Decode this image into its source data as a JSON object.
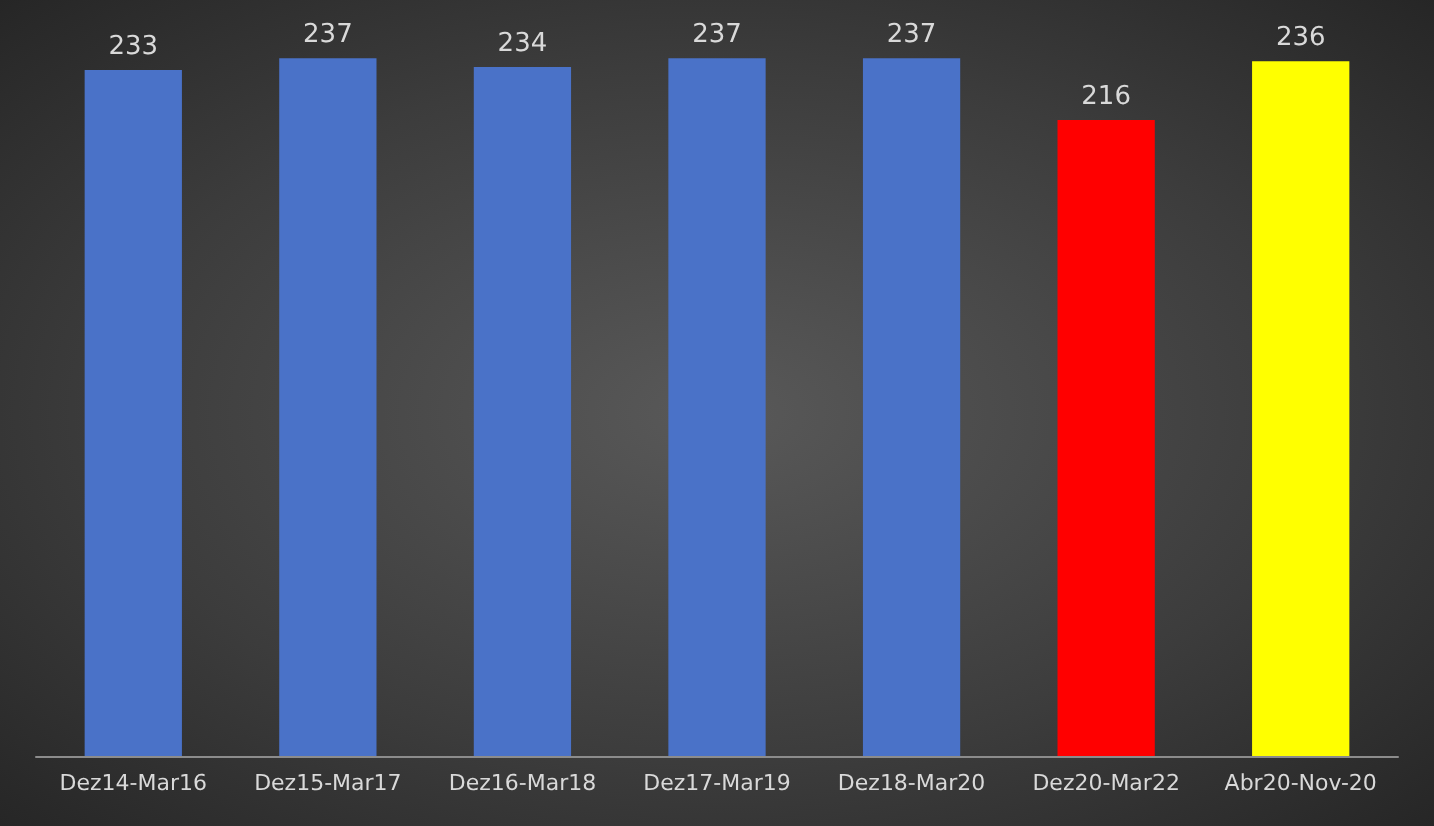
{
  "chart_data": {
    "type": "bar",
    "categories": [
      "Dez14-Mar16",
      "Dez15-Mar17",
      "Dez16-Mar18",
      "Dez17-Mar19",
      "Dez18-Mar20",
      "Dez20-Mar22",
      "Abr20-Nov-20"
    ],
    "values": [
      233,
      237,
      234,
      237,
      237,
      216,
      236
    ],
    "colors": [
      "#4a72c8",
      "#4a72c8",
      "#4a72c8",
      "#4a72c8",
      "#4a72c8",
      "#ff0000",
      "#ffff00"
    ],
    "data_labels": true
  }
}
